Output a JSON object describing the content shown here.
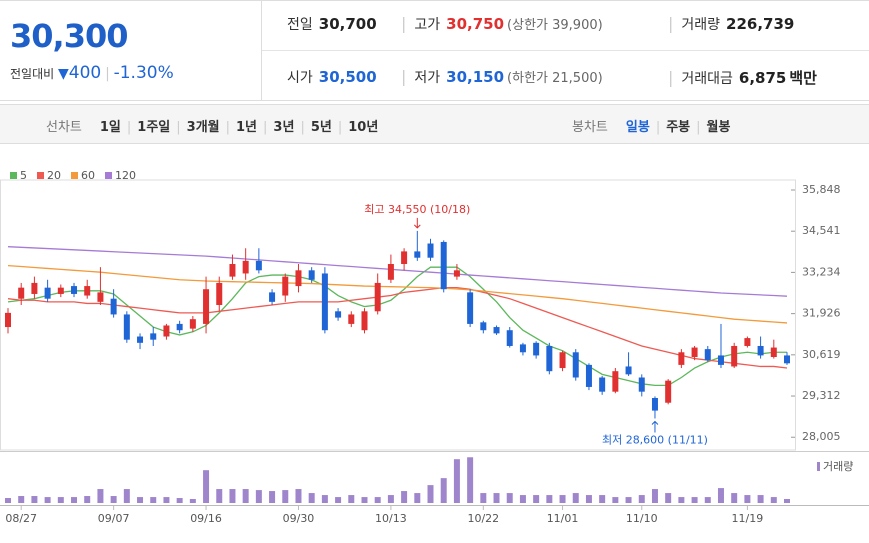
{
  "quote": {
    "price": "30,300",
    "change_label": "전일대비",
    "change": "400",
    "change_pct": "-1.30%"
  },
  "stats": [
    [
      {
        "label": "전일",
        "value": "30,700",
        "color": "#222"
      },
      {
        "label": "고가",
        "value": "30,750",
        "note": "(상한가 39,900)",
        "color": "#e0302f"
      },
      {
        "label": "거래량",
        "value": "226,739",
        "color": "#222"
      }
    ],
    [
      {
        "label": "시가",
        "value": "30,500",
        "color": "#1f65d6"
      },
      {
        "label": "저가",
        "value": "30,150",
        "note": "(하한가 21,500)",
        "color": "#1f65d6"
      },
      {
        "label": "거래대금",
        "value": "6,875",
        "unit": "백만",
        "color": "#222"
      }
    ]
  ],
  "line_chart": {
    "label": "선차트",
    "options": [
      "1일",
      "1주일",
      "3개월",
      "1년",
      "3년",
      "5년",
      "10년"
    ]
  },
  "candle_chart": {
    "label": "봉차트",
    "options": [
      "일봉",
      "주봉",
      "월봉"
    ],
    "selected": 0
  },
  "chart_data": {
    "type": "candlestick",
    "up_color": "#e0302f",
    "down_color": "#1f65d6",
    "categories": [
      null,
      "08/27",
      null,
      null,
      null,
      null,
      null,
      null,
      "09/07",
      null,
      null,
      null,
      null,
      null,
      null,
      "09/16",
      null,
      null,
      null,
      null,
      null,
      null,
      "09/30",
      null,
      null,
      null,
      null,
      null,
      null,
      "10/13",
      null,
      null,
      null,
      null,
      null,
      null,
      "10/22",
      null,
      null,
      null,
      null,
      null,
      "11/01",
      null,
      null,
      null,
      null,
      null,
      "11/10",
      null,
      null,
      null,
      null,
      null,
      null,
      null,
      "11/19",
      null,
      null,
      null
    ],
    "open": [
      31500,
      32400,
      32550,
      32750,
      32550,
      32800,
      32500,
      32300,
      32400,
      31900,
      31200,
      31300,
      31200,
      31600,
      31450,
      31600,
      32200,
      33100,
      33200,
      33600,
      32600,
      32500,
      32800,
      33300,
      33200,
      32000,
      31600,
      31400,
      32000,
      33000,
      33500,
      33900,
      34150,
      34200,
      33100,
      32600,
      31650,
      31500,
      31400,
      30950,
      31000,
      30900,
      30200,
      30700,
      30300,
      29900,
      29450,
      30250,
      29900,
      29250,
      29100,
      30300,
      30550,
      30800,
      30600,
      30250,
      30900,
      30900,
      30550,
      30600
    ],
    "high": [
      32100,
      32900,
      33100,
      33000,
      32850,
      32900,
      33000,
      33400,
      32700,
      32000,
      31300,
      31500,
      31600,
      31700,
      31850,
      33100,
      33100,
      33800,
      34000,
      34000,
      32700,
      33200,
      33500,
      33400,
      33400,
      32100,
      32000,
      32100,
      33200,
      33800,
      34000,
      34550,
      34300,
      34250,
      33500,
      32700,
      31700,
      31550,
      31500,
      31000,
      31050,
      31000,
      30750,
      30800,
      30350,
      29950,
      30200,
      30700,
      30000,
      29300,
      29850,
      30800,
      30900,
      30900,
      31600,
      31000,
      31200,
      31200,
      31100,
      30700
    ],
    "low": [
      31300,
      32200,
      32400,
      32300,
      32450,
      32450,
      32400,
      32200,
      31800,
      31000,
      30800,
      30900,
      31100,
      31300,
      31350,
      31300,
      32000,
      33000,
      33000,
      33200,
      32200,
      32300,
      32600,
      32900,
      31300,
      31700,
      31500,
      31300,
      31900,
      32900,
      33300,
      33600,
      33600,
      32600,
      33000,
      31500,
      31300,
      31250,
      30850,
      30600,
      30500,
      30000,
      30100,
      29800,
      29500,
      29350,
      29400,
      29950,
      29300,
      28600,
      29050,
      30200,
      30450,
      30400,
      30200,
      30200,
      30850,
      30500,
      30500,
      30300
    ],
    "close": [
      31950,
      32750,
      32900,
      32400,
      32750,
      32550,
      32800,
      32600,
      31900,
      31100,
      31000,
      31100,
      31550,
      31400,
      31750,
      32700,
      32900,
      33500,
      33600,
      33300,
      32300,
      33100,
      33300,
      33000,
      31400,
      31800,
      31900,
      32000,
      32900,
      33500,
      33900,
      33700,
      33700,
      32700,
      33300,
      31600,
      31400,
      31300,
      30900,
      30700,
      30600,
      30100,
      30700,
      29900,
      29600,
      29450,
      30100,
      30000,
      29450,
      28850,
      29800,
      30700,
      30850,
      30450,
      30300,
      30900,
      31150,
      30600,
      30850,
      30350
    ],
    "series": [
      {
        "name": "5",
        "color": "#5cb85c",
        "values": [
          32300,
          32350,
          32400,
          32500,
          32600,
          32650,
          32650,
          32650,
          32550,
          32200,
          31850,
          31500,
          31350,
          31250,
          31350,
          31550,
          31950,
          32400,
          32900,
          33100,
          33150,
          33150,
          33100,
          33000,
          32800,
          32500,
          32300,
          32150,
          32200,
          32350,
          32700,
          33100,
          33400,
          33400,
          33400,
          33100,
          32700,
          32300,
          31800,
          31400,
          31150,
          30900,
          30750,
          30500,
          30250,
          30000,
          29900,
          29800,
          29700,
          29650,
          29650,
          29900,
          30200,
          30400,
          30550,
          30650,
          30700,
          30650,
          30700,
          30700
        ]
      },
      {
        "name": "20",
        "color": "#ee5a52",
        "values": [
          32400,
          32350,
          32350,
          32300,
          32300,
          32300,
          32250,
          32250,
          32200,
          32150,
          32100,
          32050,
          32000,
          31950,
          31950,
          31950,
          32000,
          32050,
          32100,
          32150,
          32200,
          32250,
          32300,
          32300,
          32300,
          32300,
          32350,
          32400,
          32450,
          32500,
          32600,
          32650,
          32700,
          32750,
          32750,
          32700,
          32600,
          32500,
          32400,
          32250,
          32100,
          31950,
          31800,
          31650,
          31500,
          31350,
          31200,
          31050,
          30900,
          30800,
          30700,
          30600,
          30500,
          30450,
          30400,
          30350,
          30300,
          30250,
          30250,
          30200
        ]
      },
      {
        "name": "60",
        "color": "#f39a3a",
        "values": [
          33450,
          33420,
          33390,
          33360,
          33330,
          33300,
          33270,
          33240,
          33200,
          33160,
          33120,
          33080,
          33040,
          33000,
          32980,
          32960,
          32950,
          32940,
          32930,
          32920,
          32910,
          32900,
          32890,
          32880,
          32860,
          32840,
          32820,
          32800,
          32790,
          32780,
          32770,
          32760,
          32750,
          32730,
          32710,
          32680,
          32640,
          32600,
          32560,
          32520,
          32480,
          32440,
          32400,
          32350,
          32300,
          32250,
          32200,
          32150,
          32100,
          32050,
          32000,
          31950,
          31900,
          31850,
          31800,
          31750,
          31720,
          31690,
          31660,
          31630
        ]
      },
      {
        "name": "120",
        "color": "#a57bd6",
        "values": [
          34050,
          34030,
          34010,
          33990,
          33970,
          33950,
          33930,
          33910,
          33890,
          33870,
          33850,
          33830,
          33810,
          33790,
          33770,
          33750,
          33720,
          33690,
          33660,
          33630,
          33600,
          33570,
          33540,
          33510,
          33480,
          33450,
          33420,
          33390,
          33360,
          33330,
          33300,
          33270,
          33240,
          33210,
          33180,
          33150,
          33120,
          33090,
          33060,
          33030,
          33000,
          32970,
          32940,
          32910,
          32880,
          32850,
          32820,
          32790,
          32760,
          32730,
          32700,
          32670,
          32640,
          32610,
          32580,
          32560,
          32540,
          32520,
          32500,
          32480
        ]
      }
    ],
    "ylim": [
      27600,
      36165
    ],
    "yticks": [
      {
        "value": 28005,
        "label": "28,005"
      },
      {
        "value": 29312,
        "label": "29,312"
      },
      {
        "value": 30619,
        "label": "30,619"
      },
      {
        "value": 31926,
        "label": "31,926"
      },
      {
        "value": 33234,
        "label": "33,234"
      },
      {
        "value": 34541,
        "label": "34,541"
      },
      {
        "value": 35848,
        "label": "35,848"
      }
    ],
    "grid": false,
    "annotations": [
      {
        "text": "최고 34,550 (10/18)",
        "color": "#e0302f"
      },
      {
        "text": "최저 28,600 (11/11)",
        "color": "#1f65d6"
      }
    ],
    "volume": {
      "label": "거래량",
      "color": "#9f86cc",
      "ylim": [
        0,
        2750000
      ],
      "values": [
        285000,
        400000,
        400000,
        340000,
        340000,
        340000,
        400000,
        800000,
        400000,
        800000,
        340000,
        340000,
        340000,
        285000,
        230000,
        1880000,
        800000,
        800000,
        800000,
        740000,
        685000,
        740000,
        800000,
        570000,
        455000,
        340000,
        455000,
        340000,
        340000,
        455000,
        685000,
        570000,
        1025000,
        1425000,
        2510000,
        2620000,
        570000,
        570000,
        570000,
        455000,
        455000,
        455000,
        455000,
        570000,
        455000,
        455000,
        340000,
        340000,
        455000,
        800000,
        570000,
        340000,
        340000,
        340000,
        855000,
        570000,
        455000,
        455000,
        340000,
        230000
      ]
    }
  }
}
